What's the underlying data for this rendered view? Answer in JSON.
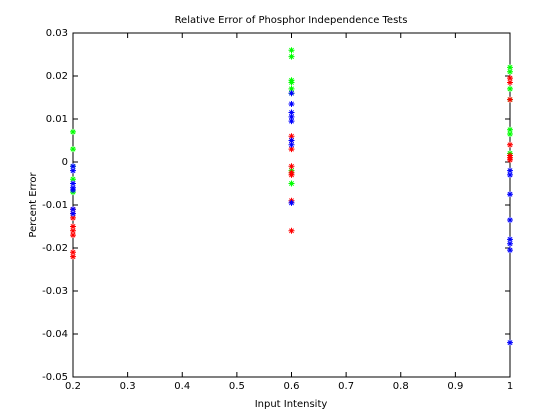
{
  "chart_data": {
    "type": "scatter",
    "title": "Relative Error of Phosphor Independence Tests",
    "x_label": "Input Intensity",
    "y_label": "Percent Error",
    "xlim": [
      0.2,
      1
    ],
    "xticks": [
      0.2,
      0.3,
      0.4,
      0.5,
      0.6,
      0.7,
      0.8,
      0.9,
      1
    ],
    "ylim": [
      -0.05,
      0.03
    ],
    "yticks": [
      -0.05,
      -0.04,
      -0.03,
      -0.02,
      -0.01,
      0,
      0.01,
      0.02,
      0.03
    ],
    "marker": "*",
    "box": true,
    "series": [
      {
        "color": "#00ff00",
        "x": [
          0.2,
          0.2,
          0.2,
          0.2,
          0.2,
          0.6,
          0.6,
          0.6,
          0.6,
          0.6,
          0.6,
          0.6,
          0.6,
          1,
          1,
          1,
          1,
          1,
          1,
          1
        ],
        "y": [
          0.007,
          0.003,
          -0.001,
          -0.004,
          -0.007,
          0.026,
          0.0245,
          0.019,
          0.0185,
          0.017,
          0.016,
          -0.005,
          -0.002,
          0.022,
          0.021,
          0.017,
          0.0145,
          0.0075,
          0.0065,
          0.002
        ]
      },
      {
        "color": "#ff0000",
        "x": [
          0.2,
          0.2,
          0.2,
          0.2,
          0.2,
          0.2,
          0.2,
          0.2,
          0.6,
          0.6,
          0.6,
          0.6,
          0.6,
          0.6,
          0.6,
          0.6,
          1,
          1,
          1,
          1,
          1,
          1,
          1
        ],
        "y": [
          -0.011,
          -0.012,
          -0.013,
          -0.015,
          -0.016,
          -0.017,
          -0.021,
          -0.022,
          0.006,
          0.005,
          0.003,
          -0.001,
          -0.0025,
          -0.003,
          -0.009,
          -0.016,
          0.0195,
          0.0185,
          0.0145,
          0.004,
          0.0015,
          0.0005,
          0.001
        ]
      },
      {
        "color": "#0000ff",
        "x": [
          0.2,
          0.2,
          0.2,
          0.2,
          0.2,
          0.2,
          0.2,
          0.6,
          0.6,
          0.6,
          0.6,
          0.6,
          0.6,
          0.6,
          0.6,
          1,
          1,
          1,
          1,
          1,
          1,
          1,
          1
        ],
        "y": [
          -0.001,
          -0.002,
          -0.005,
          -0.006,
          -0.0065,
          -0.011,
          -0.012,
          0.016,
          0.0135,
          0.0115,
          0.0105,
          0.0095,
          0.005,
          0.004,
          -0.0095,
          -0.002,
          -0.003,
          -0.0075,
          -0.0135,
          -0.018,
          -0.019,
          -0.0205,
          -0.042
        ]
      }
    ]
  }
}
